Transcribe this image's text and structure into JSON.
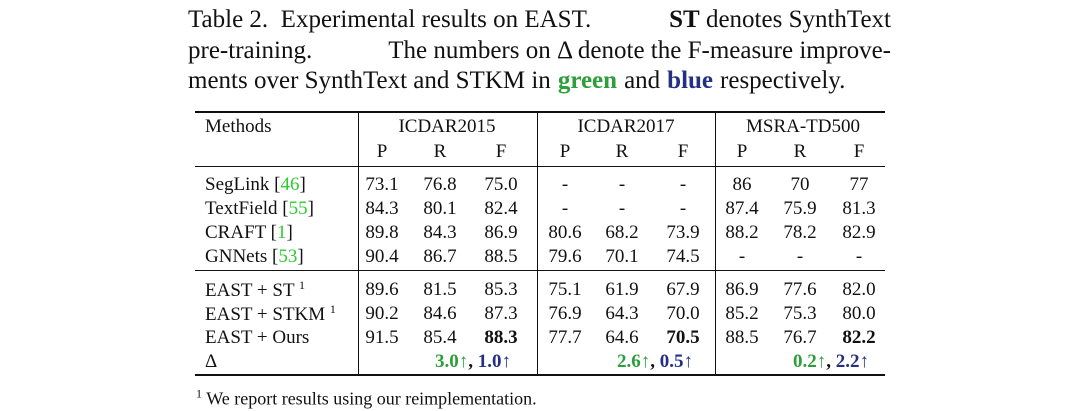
{
  "caption": {
    "line1": [
      "Table 2.",
      "Experimental results on EAST.",
      "ST",
      "denotes SynthText"
    ],
    "line2": [
      "pre-training.",
      "The numbers on Δ denote the F-measure improve-"
    ],
    "line3": [
      "ments over SynthText and STKM in",
      "green",
      "and",
      "blue",
      "respectively."
    ]
  },
  "table": {
    "header": {
      "methods": "Methods",
      "groups": [
        "ICDAR2015",
        "ICDAR2017",
        "MSRA-TD500"
      ],
      "sub": [
        "P",
        "R",
        "F",
        "P",
        "R",
        "F",
        "P",
        "R",
        "F"
      ]
    },
    "block1": [
      {
        "method": "SegLink [46]",
        "values": [
          "73.1",
          "76.8",
          "75.0",
          "-",
          "-",
          "-",
          "86",
          "70",
          "77"
        ]
      },
      {
        "method": "TextField [55]",
        "values": [
          "84.3",
          "80.1",
          "82.4",
          "-",
          "-",
          "-",
          "87.4",
          "75.9",
          "81.3"
        ]
      },
      {
        "method": "CRAFT [1]",
        "values": [
          "89.8",
          "84.3",
          "86.9",
          "80.6",
          "68.2",
          "73.9",
          "88.2",
          "78.2",
          "82.9"
        ]
      },
      {
        "method": "GNNets [53]",
        "values": [
          "90.4",
          "86.7",
          "88.5",
          "79.6",
          "70.1",
          "74.5",
          "-",
          "-",
          "-"
        ]
      }
    ],
    "block2": [
      {
        "method": "EAST + ST",
        "sup": "1",
        "values": [
          "89.6",
          "81.5",
          "85.3",
          "75.1",
          "61.9",
          "67.9",
          "86.9",
          "77.6",
          "82.0"
        ]
      },
      {
        "method": "EAST + STKM",
        "sup": "1",
        "values": [
          "90.2",
          "84.6",
          "87.3",
          "76.9",
          "64.3",
          "70.0",
          "85.2",
          "75.3",
          "80.0"
        ]
      },
      {
        "method": "EAST + Ours",
        "values": [
          "91.5",
          "85.4",
          "88.3",
          "77.7",
          "64.6",
          "70.5",
          "88.5",
          "76.7",
          "82.2"
        ]
      }
    ],
    "delta": {
      "method": "Δ",
      "values": [
        "3.0↑, 1.0↑",
        "2.6↑, 0.5↑",
        "0.2↑, 2.2↑"
      ]
    }
  },
  "footnote": {
    "mark": "1",
    "text": "We report results using our reimplementation."
  }
}
